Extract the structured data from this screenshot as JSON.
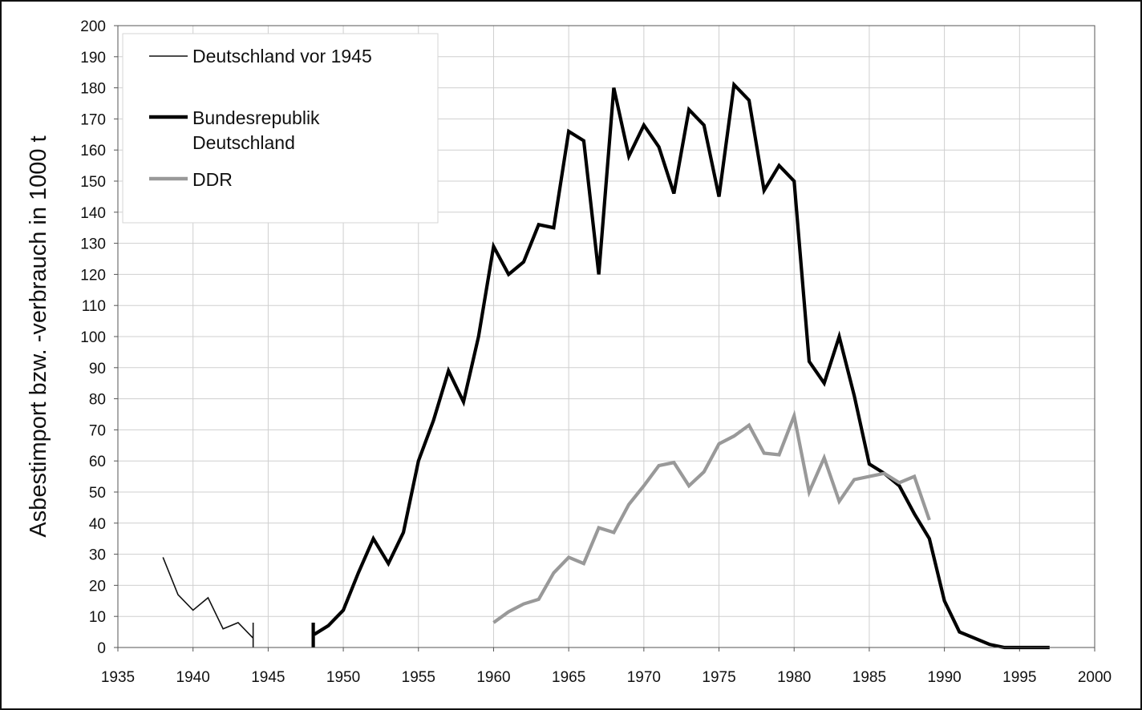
{
  "chart_data": {
    "type": "line",
    "title": "",
    "xlabel": "",
    "ylabel": "Asbestimport bzw. -verbrauch in 1000 t",
    "xlim": [
      1935,
      2000
    ],
    "ylim": [
      0,
      200
    ],
    "x_ticks": [
      1935,
      1940,
      1945,
      1950,
      1955,
      1960,
      1965,
      1970,
      1975,
      1980,
      1985,
      1990,
      1995,
      2000
    ],
    "y_ticks": [
      0,
      10,
      20,
      30,
      40,
      50,
      60,
      70,
      80,
      90,
      100,
      110,
      120,
      130,
      140,
      150,
      160,
      170,
      180,
      190,
      200
    ],
    "grid": true,
    "legend_position": "top-left",
    "series": [
      {
        "name": "Deutschland vor 1945",
        "color": "#111111",
        "style": "thin",
        "points": [
          [
            1938,
            29
          ],
          [
            1939,
            17
          ],
          [
            1940,
            12
          ],
          [
            1941,
            16
          ],
          [
            1942,
            6
          ],
          [
            1943,
            8
          ],
          [
            1944,
            3
          ],
          [
            1944,
            0
          ],
          [
            1944,
            8
          ]
        ]
      },
      {
        "name": "Bundesrepublik Deutschland",
        "color": "#000000",
        "style": "thick",
        "points": [
          [
            1948,
            8
          ],
          [
            1948,
            0
          ],
          [
            1948,
            4
          ],
          [
            1949,
            7
          ],
          [
            1950,
            12
          ],
          [
            1951,
            24
          ],
          [
            1952,
            35
          ],
          [
            1953,
            27
          ],
          [
            1954,
            37
          ],
          [
            1955,
            60
          ],
          [
            1956,
            73
          ],
          [
            1957,
            89
          ],
          [
            1958,
            79
          ],
          [
            1959,
            100
          ],
          [
            1960,
            129
          ],
          [
            1961,
            120
          ],
          [
            1962,
            124
          ],
          [
            1963,
            136
          ],
          [
            1964,
            135
          ],
          [
            1965,
            166
          ],
          [
            1966,
            163
          ],
          [
            1967,
            120
          ],
          [
            1968,
            180
          ],
          [
            1969,
            158
          ],
          [
            1970,
            168
          ],
          [
            1971,
            161
          ],
          [
            1972,
            146
          ],
          [
            1973,
            173
          ],
          [
            1974,
            168
          ],
          [
            1975,
            145
          ],
          [
            1976,
            181
          ],
          [
            1977,
            176
          ],
          [
            1978,
            147
          ],
          [
            1979,
            155
          ],
          [
            1980,
            150
          ],
          [
            1981,
            92
          ],
          [
            1982,
            85
          ],
          [
            1983,
            100
          ],
          [
            1984,
            81
          ],
          [
            1985,
            59
          ],
          [
            1986,
            56
          ],
          [
            1987,
            52
          ],
          [
            1988,
            43
          ],
          [
            1989,
            35
          ],
          [
            1990,
            15
          ],
          [
            1991,
            5
          ],
          [
            1992,
            3
          ],
          [
            1993,
            1
          ],
          [
            1994,
            0
          ],
          [
            1995,
            0
          ],
          [
            1996,
            0
          ],
          [
            1997,
            0
          ]
        ]
      },
      {
        "name": "DDR",
        "color": "#999999",
        "style": "thick",
        "points": [
          [
            1960,
            8
          ],
          [
            1961,
            11.5
          ],
          [
            1962,
            14
          ],
          [
            1963,
            15.5
          ],
          [
            1964,
            24
          ],
          [
            1965,
            29
          ],
          [
            1966,
            27
          ],
          [
            1967,
            38.5
          ],
          [
            1968,
            37
          ],
          [
            1969,
            46
          ],
          [
            1970,
            52
          ],
          [
            1971,
            58.5
          ],
          [
            1972,
            59.5
          ],
          [
            1973,
            52
          ],
          [
            1974,
            56.5
          ],
          [
            1975,
            65.5
          ],
          [
            1976,
            68
          ],
          [
            1977,
            71.5
          ],
          [
            1978,
            62.5
          ],
          [
            1979,
            62
          ],
          [
            1980,
            74.5
          ],
          [
            1981,
            50
          ],
          [
            1982,
            61
          ],
          [
            1983,
            47
          ],
          [
            1984,
            54
          ],
          [
            1985,
            55
          ],
          [
            1986,
            56
          ],
          [
            1987,
            53
          ],
          [
            1988,
            55
          ],
          [
            1989,
            41
          ]
        ]
      }
    ]
  },
  "legend": {
    "items": [
      {
        "lines": [
          "Deutschland vor 1945"
        ]
      },
      {
        "lines": [
          "Bundesrepublik",
          "Deutschland"
        ]
      },
      {
        "lines": [
          "DDR"
        ]
      }
    ]
  }
}
